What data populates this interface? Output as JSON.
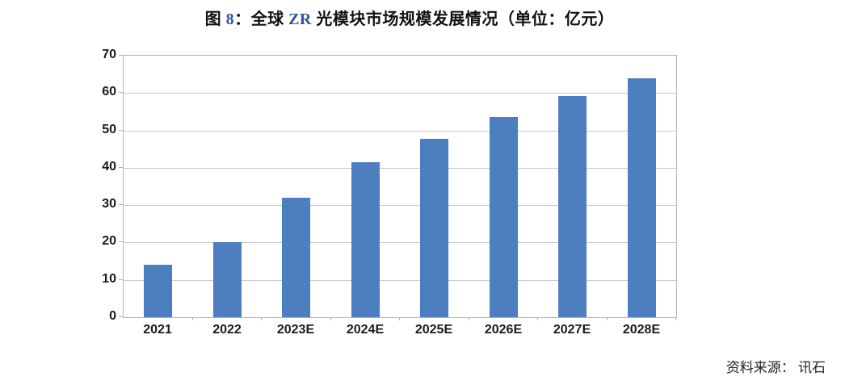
{
  "figure": {
    "title": {
      "full": "图 8：全球 ZR 光模块市场规模发展情况（单位：亿元）",
      "part1": "图 ",
      "number": "8",
      "part2": "：全球 ",
      "latin": "ZR",
      "part3": " 光模块市场规模发展情况（单位：亿元）"
    },
    "source": {
      "label": "资料来源：",
      "value": "讯石"
    }
  },
  "colors": {
    "bar": "#4d7ebf",
    "grid": "#c9c9c9",
    "axis": "#b3b3b3",
    "title_accent": "#2e55a3",
    "text": "#1a1a1a"
  },
  "chart_data": {
    "type": "bar",
    "categories": [
      "2021",
      "2022",
      "2023E",
      "2024E",
      "2025E",
      "2026E",
      "2027E",
      "2028E"
    ],
    "values": [
      14,
      20,
      32,
      41.5,
      47.7,
      53.5,
      59.3,
      64
    ],
    "title": "全球 ZR 光模块市场规模发展情况",
    "unit": "亿元",
    "xlabel": "",
    "ylabel": "",
    "ylim": [
      0,
      70
    ],
    "yticks": [
      0,
      10,
      20,
      30,
      40,
      50,
      60,
      70
    ],
    "grid": true,
    "legend": false
  }
}
